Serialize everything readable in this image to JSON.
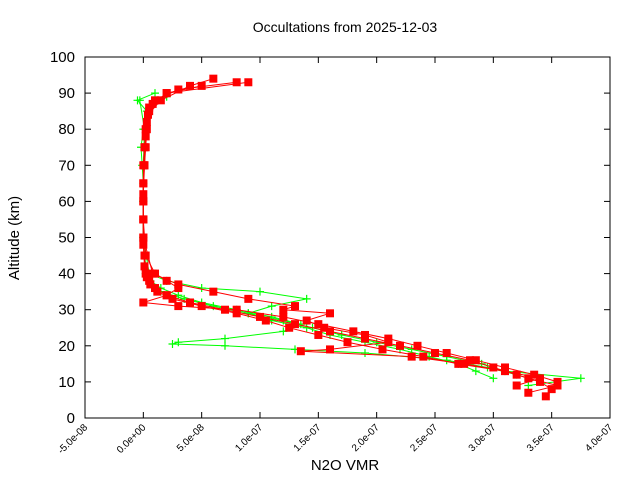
{
  "chart_data": {
    "type": "line",
    "title": "Occultations from 2025-12-03",
    "xlabel": "N2O VMR",
    "ylabel": "Altitude (km)",
    "xlim": [
      -5e-08,
      4e-07
    ],
    "ylim": [
      0,
      100
    ],
    "x_ticks": [
      "-5.0e-08",
      "0.0e+00",
      "5.0e-08",
      "1.0e-07",
      "1.5e-07",
      "2.0e-07",
      "2.5e-07",
      "3.0e-07",
      "3.5e-07",
      "4.0e-07"
    ],
    "x_tick_values": [
      -5e-08,
      0,
      5e-08,
      1e-07,
      1.5e-07,
      2e-07,
      2.5e-07,
      3e-07,
      3.5e-07,
      4e-07
    ],
    "y_ticks": [
      "0",
      "10",
      "20",
      "30",
      "40",
      "50",
      "60",
      "70",
      "80",
      "90",
      "100"
    ],
    "y_tick_values": [
      0,
      10,
      20,
      30,
      40,
      50,
      60,
      70,
      80,
      90,
      100
    ],
    "grid": false,
    "legend": "none",
    "series": [
      {
        "color": "#00ff00",
        "marker": "plus",
        "profiles": [
          {
            "alt": [
              9,
              11,
              13,
              15,
              17,
              19,
              21,
              23,
              25,
              27,
              29,
              31,
              33,
              35,
              37,
              40,
              45,
              50,
              55,
              60,
              65,
              70,
              75,
              80,
              85,
              88,
              90
            ],
            "vmr": [
              3.3e-07,
              3.75e-07,
              3.1e-07,
              2.9e-07,
              2.6e-07,
              2.3e-07,
              2e-07,
              1.7e-07,
              1.45e-07,
              1.2e-07,
              9e-08,
              6e-08,
              3.5e-08,
              1.5e-08,
              8e-09,
              3e-09,
              1e-09,
              0,
              0,
              0,
              0,
              -1e-09,
              -2e-09,
              0,
              3e-09,
              -5e-09,
              1e-08
            ]
          },
          {
            "alt": [
              10,
              12,
              14,
              16,
              18,
              19,
              20,
              20.5,
              21,
              22,
              24,
              26,
              28,
              30,
              32,
              34,
              36,
              38,
              40,
              50,
              60,
              70,
              80,
              86,
              89
            ],
            "vmr": [
              3.4e-07,
              3.2e-07,
              2.95e-07,
              2.6e-07,
              1.9e-07,
              1.3e-07,
              7e-08,
              2.5e-08,
              3e-08,
              7e-08,
              1.2e-07,
              1.35e-07,
              1.1e-07,
              8e-08,
              5e-08,
              3e-08,
              1.5e-08,
              6e-09,
              2e-09,
              0,
              0,
              0,
              2e-09,
              6e-09,
              2e-08
            ]
          },
          {
            "alt": [
              11,
              13,
              15,
              17,
              19,
              21,
              23,
              25,
              27,
              29,
              31,
              33,
              35,
              36,
              38,
              40,
              50,
              60,
              70,
              80,
              88
            ],
            "vmr": [
              3e-07,
              2.85e-07,
              2.7e-07,
              2.45e-07,
              2.2e-07,
              1.9e-07,
              1.6e-07,
              1.4e-07,
              1.1e-07,
              9e-08,
              1.1e-07,
              1.4e-07,
              1e-07,
              5e-08,
              2e-08,
              5e-09,
              0,
              0,
              0,
              1e-09,
              -3e-09
            ]
          }
        ]
      },
      {
        "color": "#ff0000",
        "marker": "square",
        "profiles": [
          {
            "alt": [
              6,
              8,
              10,
              12,
              14,
              16,
              18,
              20,
              22,
              24,
              26,
              28,
              30,
              32,
              34,
              36,
              38,
              40,
              45,
              50,
              55,
              60,
              65,
              70,
              75,
              80,
              85,
              88,
              91,
              93
            ],
            "vmr": [
              3.45e-07,
              3.5e-07,
              3.4e-07,
              3.2e-07,
              3e-07,
              2.8e-07,
              2.5e-07,
              2.2e-07,
              1.9e-07,
              1.6e-07,
              1.3e-07,
              1e-07,
              7e-08,
              4e-08,
              2e-08,
              1e-08,
              5e-09,
              2e-09,
              1e-09,
              0,
              0,
              0,
              0,
              1e-09,
              2e-09,
              3e-09,
              5e-09,
              1e-08,
              3e-08,
              8e-08
            ]
          },
          {
            "alt": [
              7,
              9,
              11,
              13,
              15,
              17,
              19,
              21,
              23,
              25,
              27,
              29,
              31,
              33,
              35,
              37,
              39,
              42,
              48,
              55,
              62,
              70,
              78,
              84,
              88,
              92,
              94
            ],
            "vmr": [
              3.3e-07,
              3.55e-07,
              3.3e-07,
              3.1e-07,
              2.7e-07,
              2.4e-07,
              2.05e-07,
              1.75e-07,
              1.5e-07,
              1.25e-07,
              1.05e-07,
              8e-08,
              5e-08,
              2.5e-08,
              1.2e-08,
              6e-09,
              3e-09,
              1e-09,
              0,
              0,
              0,
              1e-09,
              2e-09,
              4e-09,
              1.5e-08,
              4e-08,
              6e-08
            ]
          },
          {
            "alt": [
              9,
              11,
              13,
              15,
              17,
              18.5,
              19,
              21,
              23,
              25,
              27,
              29,
              30,
              31,
              33,
              35,
              37,
              40,
              50,
              60,
              70,
              80,
              86,
              90,
              93
            ],
            "vmr": [
              3.2e-07,
              3.4e-07,
              3.1e-07,
              2.75e-07,
              2.3e-07,
              1.35e-07,
              1.6e-07,
              2.1e-07,
              1.9e-07,
              1.55e-07,
              1.4e-07,
              1.6e-07,
              1.2e-07,
              1.3e-07,
              9e-08,
              6e-08,
              3e-08,
              8e-09,
              0,
              0,
              0,
              2e-09,
              5e-09,
              2e-08,
              9e-08
            ]
          },
          {
            "alt": [
              10,
              12,
              14,
              16,
              18,
              20,
              22,
              24,
              26,
              28,
              30,
              31,
              32,
              34,
              36,
              38,
              40,
              45,
              55,
              65,
              75,
              82,
              87,
              90,
              92
            ],
            "vmr": [
              3.55e-07,
              3.35e-07,
              3.1e-07,
              2.85e-07,
              2.6e-07,
              2.35e-07,
              2.1e-07,
              1.8e-07,
              1.5e-07,
              1.2e-07,
              8e-08,
              3e-08,
              0,
              2e-08,
              3e-08,
              2e-08,
              1e-08,
              2e-09,
              0,
              0,
              1e-09,
              3e-09,
              8e-09,
              2e-08,
              5e-08
            ]
          }
        ]
      }
    ]
  }
}
